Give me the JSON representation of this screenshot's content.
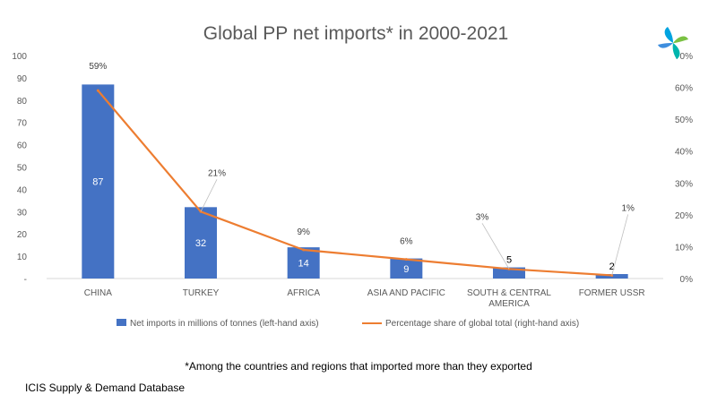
{
  "chart_data": {
    "type": "bar",
    "title": "Global PP net imports* in 2000-2021",
    "categories": [
      "CHINA",
      "TURKEY",
      "AFRICA",
      "ASIA AND PACIFIC",
      "SOUTH & CENTRAL AMERICA",
      "FORMER USSR"
    ],
    "series": [
      {
        "name": "Net imports in millions of tonnes (left-hand axis)",
        "type": "bar",
        "axis": "left",
        "values": [
          87,
          32,
          14,
          9,
          5,
          2
        ],
        "labels": [
          "87",
          "32",
          "14",
          "9",
          "5",
          "2"
        ],
        "color": "#4472C4"
      },
      {
        "name": "Percentage share of global total (right-hand axis)",
        "type": "line",
        "axis": "right",
        "values": [
          59,
          21,
          9,
          6,
          3,
          1
        ],
        "labels": [
          "59%",
          "21%",
          "9%",
          "6%",
          "3%",
          "1%"
        ],
        "color": "#ED7D31"
      }
    ],
    "y_left": {
      "ylim": [
        0,
        100
      ],
      "ticks": [
        "-",
        "10",
        "20",
        "30",
        "40",
        "50",
        "60",
        "70",
        "80",
        "90",
        "100"
      ]
    },
    "y_right": {
      "ylim": [
        0,
        70
      ],
      "ticks": [
        "0%",
        "10%",
        "20%",
        "30%",
        "40%",
        "50%",
        "60%",
        "70%"
      ]
    },
    "grid": false,
    "legend_position": "bottom"
  },
  "footnote": "*Among the countries and regions that imported more than they exported",
  "source": "ICIS Supply & Demand Database",
  "logo": {
    "icon": "icis-logo-icon",
    "colors": [
      "#00A3E0",
      "#7AC143",
      "#00B5AD"
    ]
  }
}
